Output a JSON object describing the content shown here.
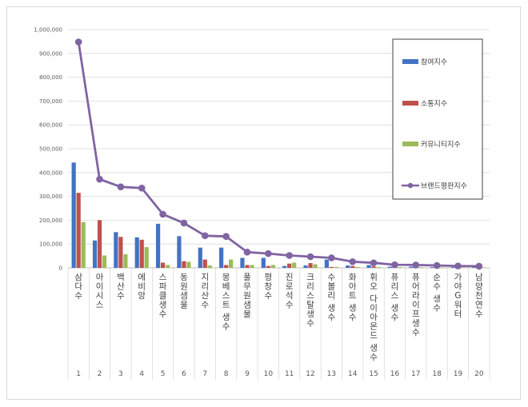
{
  "chart_data": {
    "type": "bar",
    "title": "",
    "xlabel": "",
    "ylabel": "",
    "ylim": [
      0,
      1000000
    ],
    "yticks": [
      "0",
      "100,000",
      "200,000",
      "300,000",
      "400,000",
      "500,000",
      "600,000",
      "700,000",
      "800,000",
      "900,000",
      "1,000,000"
    ],
    "categories": [
      "삼다수",
      "아이시스",
      "백산수",
      "에비앙",
      "스파클생수",
      "동원샘물",
      "지리산수",
      "몽베스트 생수",
      "풀무원샘물",
      "평창수",
      "진로석수",
      "크리스탈생수",
      "수볼리 생수",
      "화아트 생수",
      "휘오 다이아몬드 생수",
      "퓨리스 생수",
      "퓨어라이프생수",
      "순수 생수",
      "가야G워터",
      "남양천연수"
    ],
    "index_labels": [
      "1",
      "2",
      "3",
      "4",
      "5",
      "6",
      "7",
      "8",
      "9",
      "10",
      "11",
      "12",
      "13",
      "14",
      "15",
      "16",
      "17",
      "18",
      "19",
      "20"
    ],
    "series": [
      {
        "name": "참여지수",
        "kind": "bar",
        "color": "#4472c4",
        "values": [
          442000,
          115000,
          150000,
          128000,
          185000,
          133000,
          85000,
          85000,
          42000,
          42000,
          8000,
          10000,
          35000,
          10000,
          12000,
          5000,
          5000,
          3000,
          3000,
          3000
        ]
      },
      {
        "name": "소통지수",
        "kind": "bar",
        "color": "#c0504d",
        "values": [
          315000,
          200000,
          130000,
          118000,
          22000,
          28000,
          35000,
          12000,
          12000,
          8000,
          18000,
          20000,
          4000,
          8000,
          6000,
          4000,
          4000,
          3000,
          3000,
          2000
        ]
      },
      {
        "name": "커뮤니티지수",
        "kind": "bar",
        "color": "#9bbb59",
        "values": [
          192000,
          52000,
          57000,
          87000,
          12000,
          25000,
          10000,
          35000,
          12000,
          12000,
          22000,
          15000,
          4000,
          4000,
          3000,
          3000,
          3000,
          2000,
          2000,
          2000
        ]
      },
      {
        "name": "브랜드평판지수",
        "kind": "line",
        "color": "#8064a2",
        "values": [
          948000,
          372000,
          340000,
          335000,
          225000,
          188000,
          135000,
          132000,
          66000,
          60000,
          52000,
          47000,
          42000,
          26000,
          21000,
          13000,
          12000,
          10000,
          8000,
          7000
        ]
      }
    ]
  }
}
